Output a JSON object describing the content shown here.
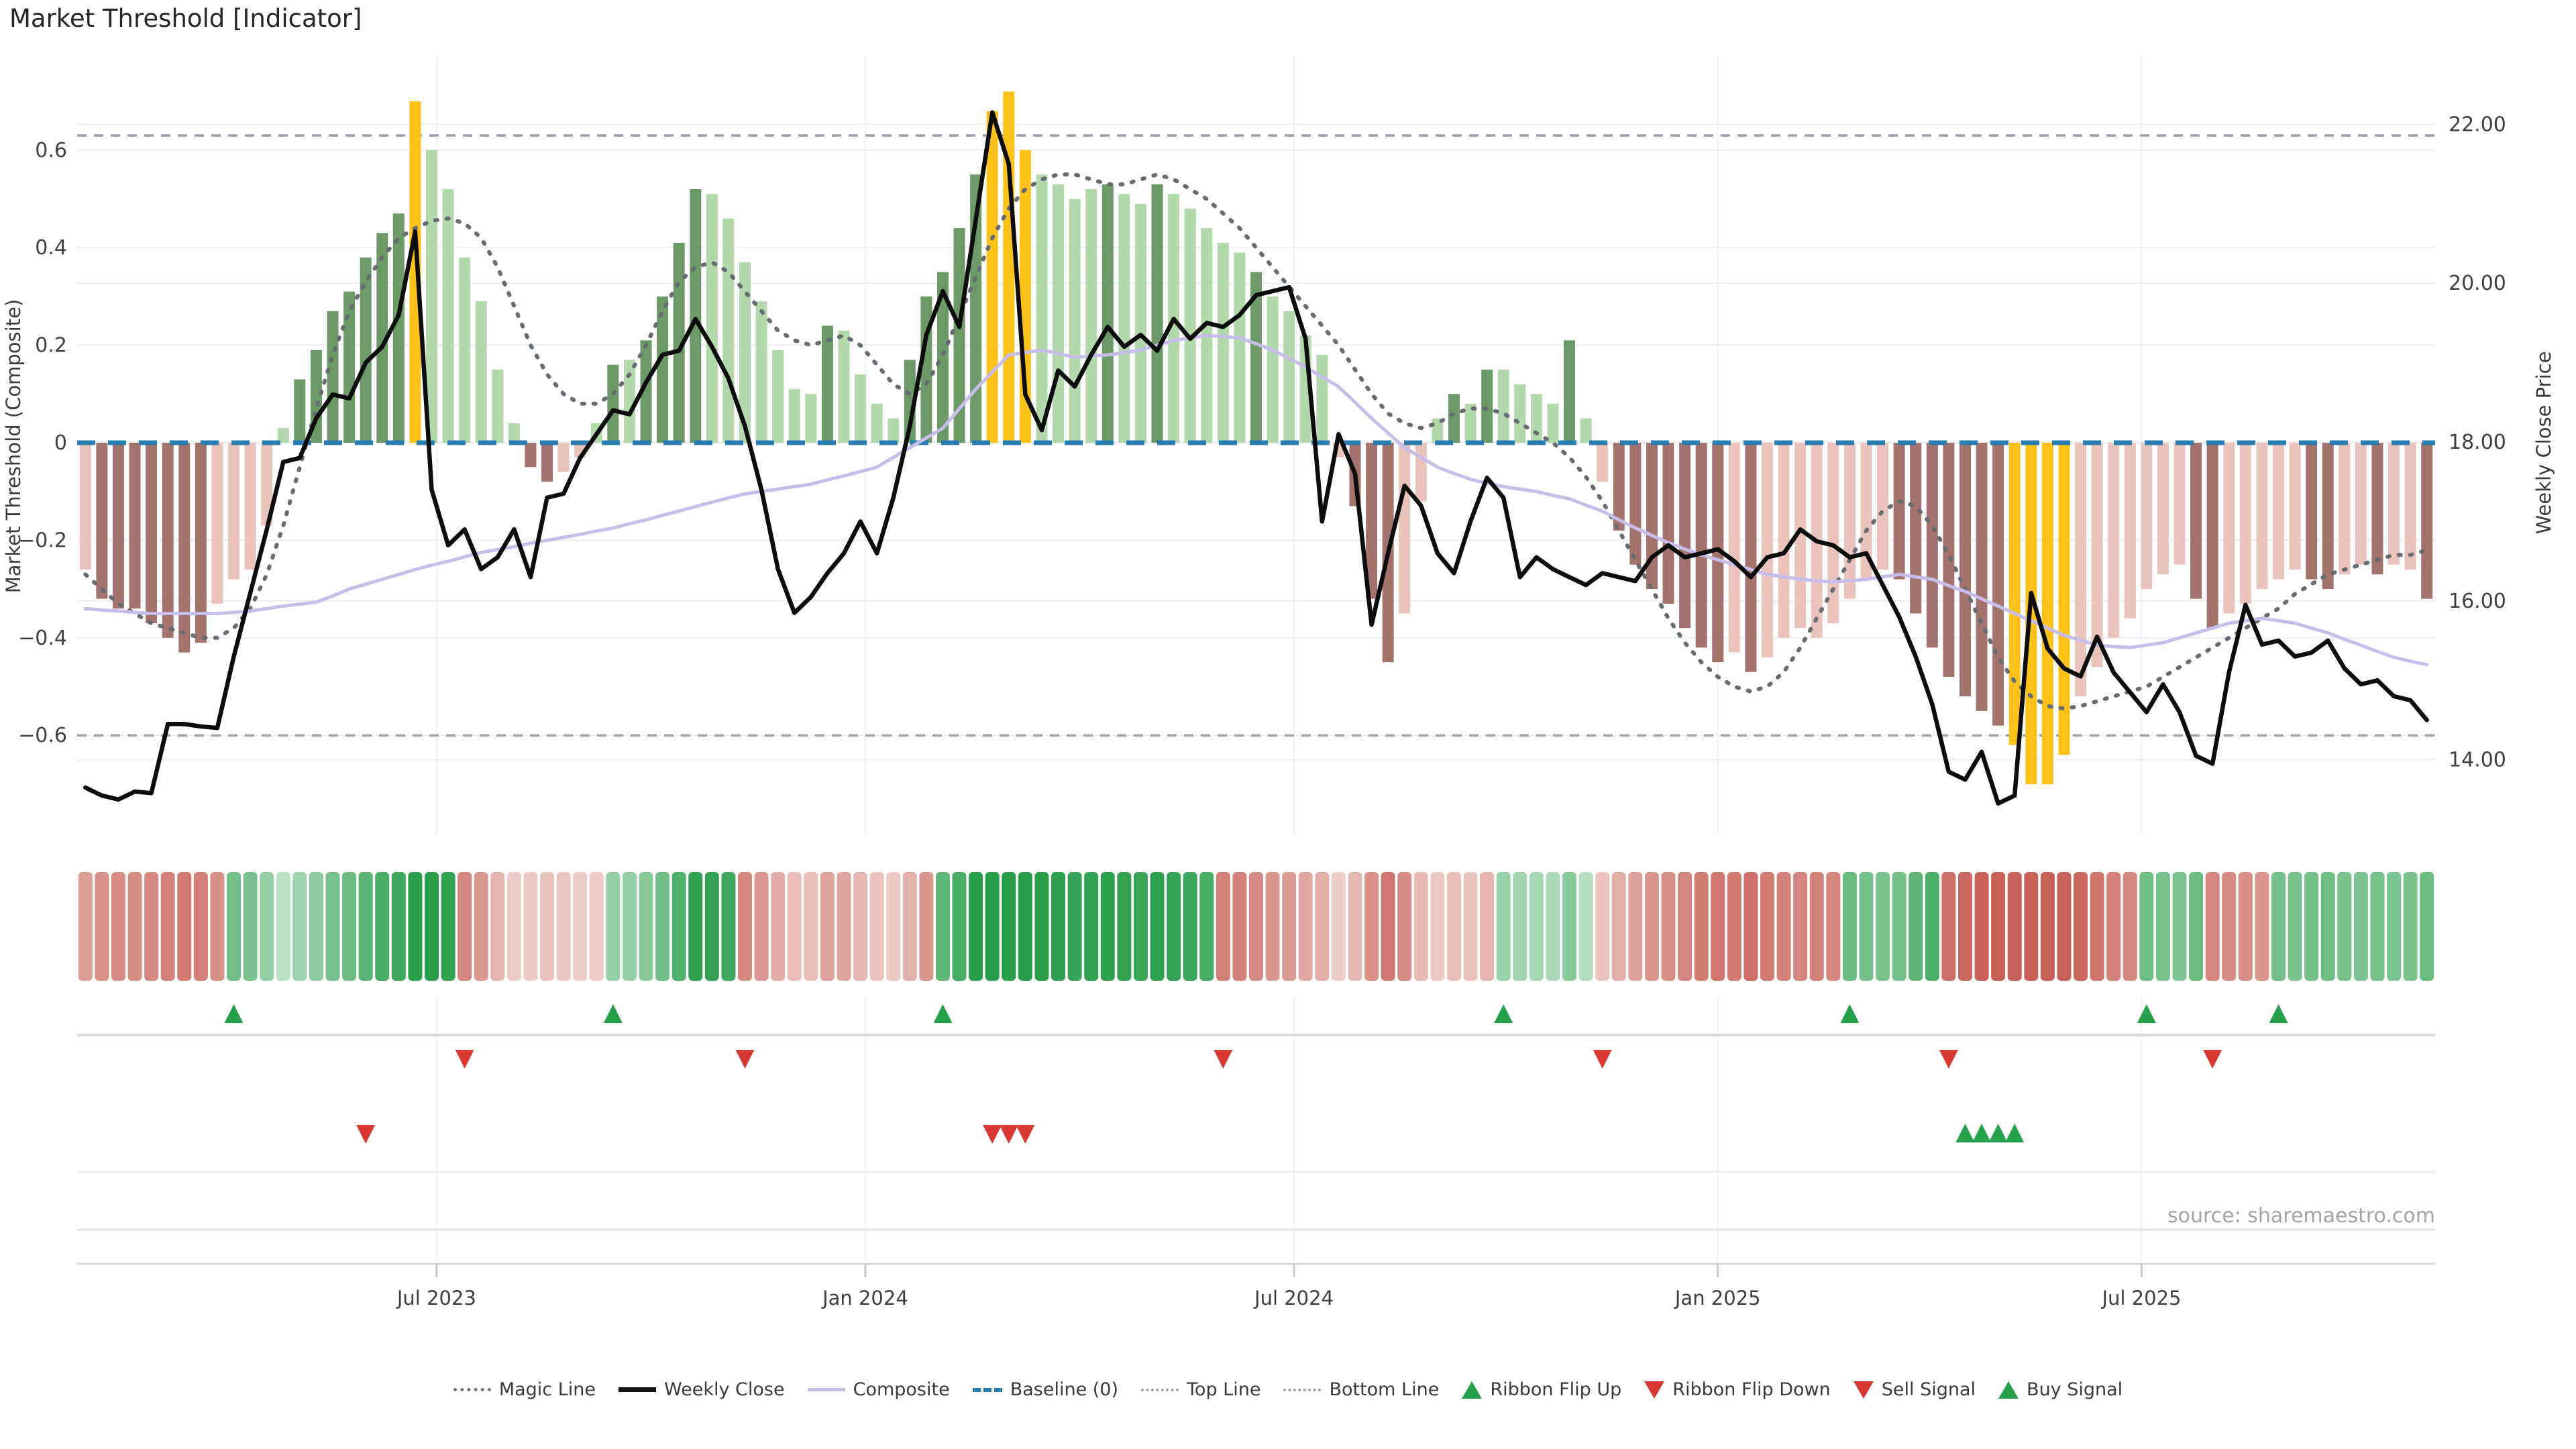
{
  "title": "Market Threshold [Indicator]",
  "source_note": "source: sharemaestro.com",
  "left_axis": {
    "label": "Market Threshold (Composite)",
    "tick_labels": [
      "0.6",
      "0.4",
      "0.2",
      "0",
      "−0.2",
      "−0.4",
      "−0.6"
    ],
    "tick_values": [
      0.6,
      0.4,
      0.2,
      0,
      -0.2,
      -0.4,
      -0.6
    ]
  },
  "right_axis": {
    "label": "Weekly Close Price",
    "tick_labels": [
      "22.00",
      "20.00",
      "18.00",
      "16.00",
      "14.00"
    ],
    "tick_values": [
      22,
      20,
      18,
      16,
      14
    ]
  },
  "x_axis": {
    "tick_labels": [
      "Jul 2023",
      "Jan 2024",
      "Jul 2024",
      "Jan 2025",
      "Jul 2025"
    ],
    "tick_weeks": [
      21.3,
      47.3,
      73.3,
      99.0,
      124.7
    ]
  },
  "legend": [
    {
      "label": "Magic Line",
      "marker": "dotted-gray"
    },
    {
      "label": "Weekly Close",
      "marker": "solid-black"
    },
    {
      "label": "Composite",
      "marker": "solid-lavender"
    },
    {
      "label": "Baseline (0)",
      "marker": "dashed-blue"
    },
    {
      "label": "Top Line",
      "marker": "dotted-light"
    },
    {
      "label": "Bottom Line",
      "marker": "dotted-light"
    },
    {
      "label": "Ribbon Flip Up",
      "marker": "tri-up-green"
    },
    {
      "label": "Ribbon Flip Down",
      "marker": "tri-down-red"
    },
    {
      "label": "Sell Signal",
      "marker": "tri-down-red"
    },
    {
      "label": "Buy Signal",
      "marker": "tri-up-green"
    }
  ],
  "colors": {
    "bar_dark_green": "#6b9a67",
    "bar_light_green": "#b3d8ab",
    "bar_yellow": "#fcc21a",
    "bar_light_pink": "#eac3bd",
    "bar_dark_pink": "#a5736e",
    "weekly_close": "#0d0d0d",
    "composite": "#c7bde9",
    "magic": "#676c72",
    "baseline": "#2a7db0",
    "top_bottom": "#9ba1a8",
    "grid": "#e9edf4",
    "vgrid": "#f0f2f7",
    "signal_green": "#26a14b",
    "signal_red": "#d93832",
    "ribbon_green_base": [
      40,
      158,
      74
    ],
    "ribbon_red_base": [
      200,
      98,
      88
    ]
  },
  "chart_data": {
    "type": "bar",
    "weeks": 143,
    "ylim_left": [
      -0.75,
      0.78
    ],
    "ylim_right": [
      13.2,
      22.6
    ],
    "top_line": 0.63,
    "bottom_line": -0.6,
    "baseline": 0,
    "series": [
      {
        "name": "Market Threshold",
        "type": "bar",
        "axis": "left",
        "values": [
          -0.26,
          -0.32,
          -0.34,
          -0.34,
          -0.37,
          -0.4,
          -0.43,
          -0.41,
          -0.33,
          -0.28,
          -0.26,
          -0.17,
          0.03,
          0.13,
          0.19,
          0.27,
          0.31,
          0.38,
          0.43,
          0.47,
          0.7,
          0.6,
          0.52,
          0.38,
          0.29,
          0.15,
          0.04,
          -0.05,
          -0.08,
          -0.06,
          -0.03,
          0.04,
          0.16,
          0.17,
          0.21,
          0.3,
          0.41,
          0.52,
          0.51,
          0.46,
          0.37,
          0.29,
          0.19,
          0.11,
          0.1,
          0.24,
          0.23,
          0.14,
          0.08,
          0.05,
          0.17,
          0.3,
          0.35,
          0.44,
          0.55,
          0.68,
          0.72,
          0.6,
          0.55,
          0.53,
          0.5,
          0.52,
          0.53,
          0.51,
          0.49,
          0.53,
          0.51,
          0.48,
          0.44,
          0.41,
          0.39,
          0.35,
          0.3,
          0.27,
          0.22,
          0.18,
          -0.03,
          -0.13,
          -0.32,
          -0.45,
          -0.35,
          -0.12,
          0.05,
          0.1,
          0.08,
          0.15,
          0.15,
          0.12,
          0.1,
          0.08,
          0.21,
          0.05,
          -0.08,
          -0.18,
          -0.25,
          -0.3,
          -0.33,
          -0.38,
          -0.42,
          -0.45,
          -0.43,
          -0.47,
          -0.44,
          -0.4,
          -0.38,
          -0.4,
          -0.37,
          -0.32,
          -0.28,
          -0.26,
          -0.28,
          -0.35,
          -0.42,
          -0.48,
          -0.52,
          -0.55,
          -0.58,
          -0.62,
          -0.7,
          -0.7,
          -0.64,
          -0.52,
          -0.46,
          -0.4,
          -0.36,
          -0.3,
          -0.27,
          -0.25,
          -0.32,
          -0.38,
          -0.35,
          -0.33,
          -0.3,
          -0.28,
          -0.26,
          -0.28,
          -0.3,
          -0.27,
          -0.25,
          -0.27,
          -0.25,
          -0.26,
          -0.32
        ],
        "bar_color_codes": "pmmmmmmmppppldddddddyllllllmmppldlddddllllllldlllldddddyyylllldlldllllldllllpmmmppldldlllldlpmmmmmmmpmppppppppmmmmmmmyyyypppppppmmpppppmmppmppm",
        "bar_color_key": {
          "d": "dark_green",
          "l": "light_green",
          "y": "yellow",
          "p": "light_pink",
          "m": "dark_pink"
        }
      },
      {
        "name": "Weekly Close",
        "type": "line",
        "axis": "right",
        "values": [
          13.65,
          13.55,
          13.5,
          13.6,
          13.58,
          14.45,
          14.45,
          14.42,
          14.4,
          15.3,
          16.1,
          16.9,
          17.75,
          17.8,
          18.3,
          18.6,
          18.55,
          19.0,
          19.2,
          19.6,
          20.65,
          17.4,
          16.7,
          16.9,
          16.4,
          16.55,
          16.9,
          16.3,
          17.3,
          17.35,
          17.8,
          18.1,
          18.4,
          18.35,
          18.75,
          19.1,
          19.15,
          19.55,
          19.2,
          18.8,
          18.2,
          17.4,
          16.4,
          15.85,
          16.05,
          16.35,
          16.6,
          17.0,
          16.6,
          17.3,
          18.2,
          19.35,
          19.9,
          19.45,
          20.8,
          22.15,
          21.5,
          18.6,
          18.15,
          18.9,
          18.7,
          19.1,
          19.45,
          19.2,
          19.35,
          19.15,
          19.55,
          19.3,
          19.5,
          19.45,
          19.6,
          19.85,
          19.9,
          19.95,
          19.3,
          17.0,
          18.1,
          17.6,
          15.7,
          16.6,
          17.45,
          17.2,
          16.6,
          16.35,
          17.0,
          17.55,
          17.3,
          16.3,
          16.55,
          16.4,
          16.3,
          16.2,
          16.35,
          16.3,
          16.25,
          16.55,
          16.7,
          16.55,
          16.6,
          16.65,
          16.5,
          16.3,
          16.55,
          16.6,
          16.9,
          16.75,
          16.7,
          16.55,
          16.6,
          16.2,
          15.8,
          15.3,
          14.7,
          13.85,
          13.75,
          14.1,
          13.45,
          13.55,
          16.1,
          15.4,
          15.15,
          15.05,
          15.55,
          15.1,
          14.85,
          14.6,
          14.95,
          14.6,
          14.05,
          13.95,
          15.1,
          15.95,
          15.45,
          15.5,
          15.3,
          15.35,
          15.5,
          15.15,
          14.95,
          15.0,
          14.8,
          14.75,
          14.5
        ]
      },
      {
        "name": "Composite",
        "type": "line",
        "axis": "left",
        "values": [
          -0.34,
          -0.343,
          -0.345,
          -0.348,
          -0.35,
          -0.35,
          -0.35,
          -0.35,
          -0.35,
          -0.348,
          -0.345,
          -0.34,
          -0.335,
          -0.331,
          -0.327,
          -0.314,
          -0.3,
          -0.29,
          -0.28,
          -0.27,
          -0.26,
          -0.251,
          -0.243,
          -0.234,
          -0.225,
          -0.219,
          -0.213,
          -0.206,
          -0.2,
          -0.194,
          -0.188,
          -0.181,
          -0.175,
          -0.166,
          -0.158,
          -0.149,
          -0.14,
          -0.131,
          -0.122,
          -0.113,
          -0.105,
          -0.1,
          -0.095,
          -0.09,
          -0.085,
          -0.076,
          -0.068,
          -0.059,
          -0.05,
          -0.03,
          -0.01,
          0.01,
          0.03,
          0.07,
          0.11,
          0.145,
          0.18,
          0.185,
          0.19,
          0.183,
          0.175,
          0.178,
          0.18,
          0.185,
          0.19,
          0.2,
          0.21,
          0.215,
          0.22,
          0.218,
          0.215,
          0.203,
          0.19,
          0.173,
          0.155,
          0.135,
          0.115,
          0.083,
          0.05,
          0.02,
          -0.01,
          -0.03,
          -0.05,
          -0.063,
          -0.075,
          -0.083,
          -0.09,
          -0.095,
          -0.1,
          -0.108,
          -0.115,
          -0.128,
          -0.14,
          -0.158,
          -0.175,
          -0.19,
          -0.205,
          -0.218,
          -0.23,
          -0.24,
          -0.25,
          -0.26,
          -0.27,
          -0.275,
          -0.28,
          -0.283,
          -0.285,
          -0.283,
          -0.28,
          -0.275,
          -0.27,
          -0.275,
          -0.28,
          -0.293,
          -0.305,
          -0.32,
          -0.335,
          -0.35,
          -0.365,
          -0.38,
          -0.395,
          -0.405,
          -0.415,
          -0.418,
          -0.42,
          -0.415,
          -0.41,
          -0.4,
          -0.39,
          -0.38,
          -0.37,
          -0.365,
          -0.36,
          -0.365,
          -0.37,
          -0.38,
          -0.39,
          -0.403,
          -0.415,
          -0.428,
          -0.44,
          -0.448,
          -0.455
        ]
      },
      {
        "name": "Magic Line",
        "type": "line",
        "axis": "left",
        "values": [
          -0.27,
          -0.3,
          -0.33,
          -0.35,
          -0.37,
          -0.38,
          -0.39,
          -0.4,
          -0.4,
          -0.38,
          -0.34,
          -0.27,
          -0.17,
          -0.05,
          0.07,
          0.18,
          0.27,
          0.33,
          0.38,
          0.42,
          0.44,
          0.455,
          0.46,
          0.45,
          0.42,
          0.36,
          0.28,
          0.2,
          0.14,
          0.1,
          0.08,
          0.08,
          0.1,
          0.14,
          0.2,
          0.27,
          0.33,
          0.36,
          0.37,
          0.35,
          0.31,
          0.27,
          0.23,
          0.21,
          0.2,
          0.21,
          0.22,
          0.2,
          0.16,
          0.12,
          0.1,
          0.12,
          0.18,
          0.26,
          0.34,
          0.42,
          0.48,
          0.52,
          0.54,
          0.55,
          0.55,
          0.54,
          0.53,
          0.53,
          0.54,
          0.55,
          0.54,
          0.52,
          0.5,
          0.47,
          0.44,
          0.4,
          0.36,
          0.32,
          0.28,
          0.24,
          0.2,
          0.15,
          0.1,
          0.06,
          0.04,
          0.03,
          0.04,
          0.06,
          0.07,
          0.07,
          0.06,
          0.04,
          0.02,
          0.0,
          -0.03,
          -0.07,
          -0.12,
          -0.18,
          -0.24,
          -0.3,
          -0.36,
          -0.41,
          -0.45,
          -0.48,
          -0.5,
          -0.51,
          -0.5,
          -0.47,
          -0.42,
          -0.36,
          -0.3,
          -0.24,
          -0.18,
          -0.14,
          -0.12,
          -0.13,
          -0.17,
          -0.23,
          -0.3,
          -0.37,
          -0.44,
          -0.49,
          -0.52,
          -0.54,
          -0.545,
          -0.54,
          -0.53,
          -0.52,
          -0.51,
          -0.5,
          -0.48,
          -0.46,
          -0.44,
          -0.42,
          -0.4,
          -0.38,
          -0.36,
          -0.34,
          -0.31,
          -0.29,
          -0.27,
          -0.26,
          -0.25,
          -0.24,
          -0.23,
          -0.23,
          -0.22
        ]
      }
    ],
    "ribbon": {
      "green_spans": [
        [
          9,
          22
        ],
        [
          32,
          39
        ],
        [
          52,
          68
        ],
        [
          86,
          91
        ],
        [
          107,
          112
        ],
        [
          125,
          128
        ],
        [
          133,
          142
        ]
      ]
    },
    "signals": {
      "ribbon_flip_up_weeks": [
        9,
        32,
        52,
        86,
        107,
        125,
        133
      ],
      "ribbon_flip_down_weeks": [
        23,
        40,
        69,
        92,
        113,
        129
      ],
      "sell_weeks": [
        17,
        55,
        56,
        57
      ],
      "buy_weeks": [
        114,
        115,
        116,
        117
      ]
    },
    "grid": true,
    "legend_position": "bottom"
  }
}
